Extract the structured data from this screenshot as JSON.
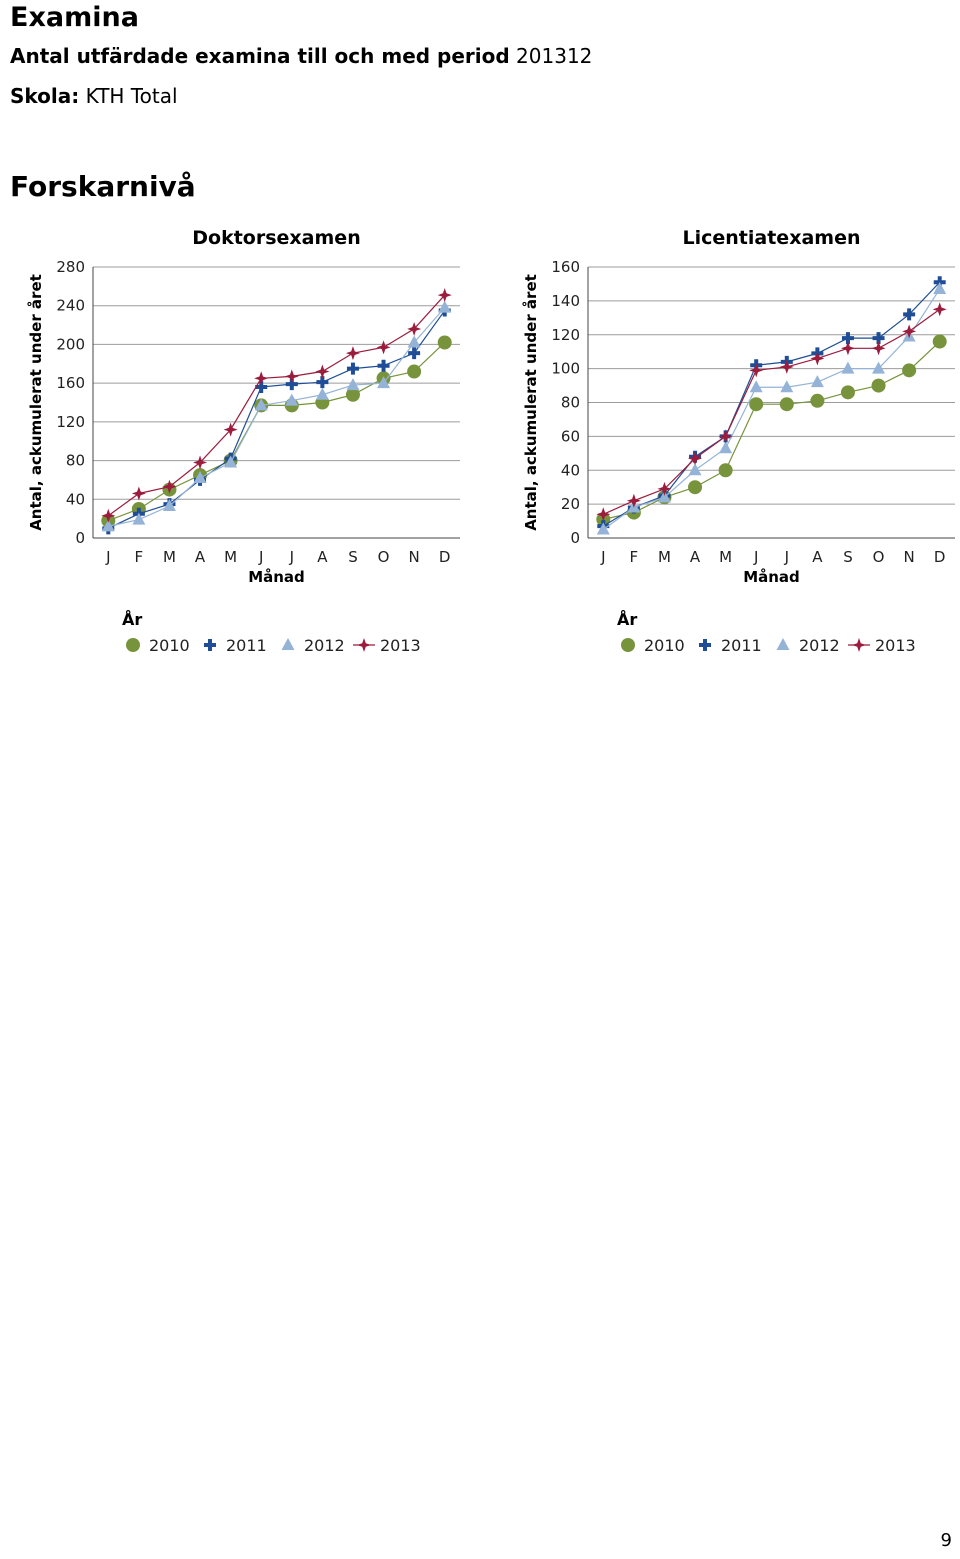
{
  "header": {
    "title": "Examina",
    "subtitle_bold": "Antal utfärdade examina till och med period",
    "subtitle_period": "201312",
    "school_label": "Skola:",
    "school_value": "KTH Total",
    "section": "Forskarnivå"
  },
  "page_number": "9",
  "colors": {
    "2010": "#77933c",
    "2011": "#1f4e96",
    "2012": "#95b3d7",
    "2013": "#9b1c3c"
  },
  "chart_data": [
    {
      "type": "line",
      "title": "Doktorsexamen",
      "xlabel": "Månad",
      "ylabel": "Antal, ackumulerat under året",
      "categories": [
        "J",
        "F",
        "M",
        "A",
        "M",
        "J",
        "J",
        "A",
        "S",
        "O",
        "N",
        "D"
      ],
      "ylim": [
        0,
        280
      ],
      "yticks": [
        0,
        40,
        80,
        120,
        160,
        200,
        240,
        280
      ],
      "grid": true,
      "legend_title": "År",
      "legend_position": "bottom",
      "series": [
        {
          "name": "2010",
          "marker": "circle",
          "values": [
            18,
            30,
            50,
            65,
            80,
            137,
            137,
            140,
            148,
            165,
            172,
            202
          ]
        },
        {
          "name": "2011",
          "marker": "cross",
          "values": [
            10,
            25,
            35,
            60,
            82,
            156,
            159,
            161,
            175,
            178,
            191,
            235
          ]
        },
        {
          "name": "2012",
          "marker": "triangle",
          "values": [
            12,
            19,
            33,
            62,
            78,
            137,
            142,
            148,
            158,
            160,
            202,
            238
          ]
        },
        {
          "name": "2013",
          "marker": "star",
          "values": [
            23,
            46,
            53,
            78,
            112,
            165,
            167,
            172,
            191,
            197,
            216,
            251
          ]
        }
      ]
    },
    {
      "type": "line",
      "title": "Licentiatexamen",
      "xlabel": "Månad",
      "ylabel": "Antal, ackumulerat under året",
      "categories": [
        "J",
        "F",
        "M",
        "A",
        "M",
        "J",
        "J",
        "A",
        "S",
        "O",
        "N",
        "D"
      ],
      "ylim": [
        0,
        160
      ],
      "yticks": [
        0,
        20,
        40,
        60,
        80,
        100,
        120,
        140,
        160
      ],
      "grid": true,
      "legend_title": "År",
      "legend_position": "bottom",
      "series": [
        {
          "name": "2010",
          "marker": "circle",
          "values": [
            11,
            15,
            24,
            30,
            40,
            79,
            79,
            81,
            86,
            90,
            99,
            116
          ]
        },
        {
          "name": "2011",
          "marker": "cross",
          "values": [
            7,
            18,
            25,
            48,
            60,
            102,
            104,
            109,
            118,
            118,
            132,
            151
          ]
        },
        {
          "name": "2012",
          "marker": "triangle",
          "values": [
            5,
            18,
            24,
            40,
            53,
            89,
            89,
            92,
            100,
            100,
            119,
            147
          ]
        },
        {
          "name": "2013",
          "marker": "star",
          "values": [
            14,
            22,
            29,
            47,
            60,
            99,
            101,
            106,
            112,
            112,
            122,
            135
          ]
        }
      ]
    }
  ]
}
